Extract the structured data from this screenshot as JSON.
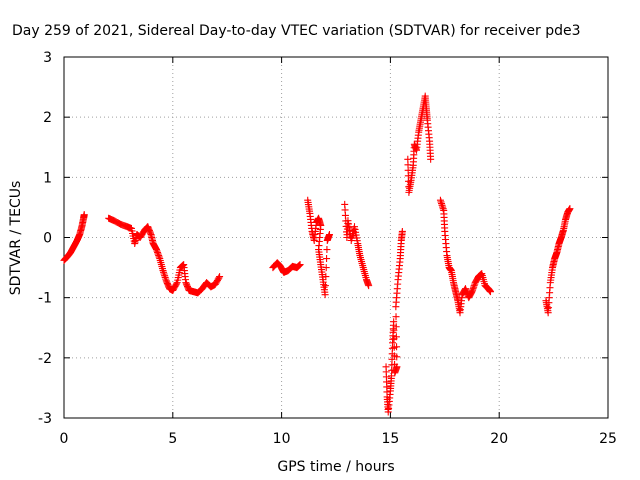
{
  "chart_data": {
    "type": "scatter",
    "title": "Day 259 of 2021, Sidereal Day-to-day VTEC variation (SDTVAR) for receiver pde3",
    "xlabel": "GPS time / hours",
    "ylabel": "SDTVAR / TECUs",
    "xlim": [
      0,
      25
    ],
    "ylim": [
      -3,
      3
    ],
    "xticks": [
      0,
      5,
      10,
      15,
      20,
      25
    ],
    "yticks": [
      -3,
      -2,
      -1,
      0,
      1,
      2,
      3
    ],
    "xtick_labels": [
      "0",
      "5",
      "10",
      "15",
      "20",
      "25"
    ],
    "ytick_labels": [
      "-3",
      "-2",
      "-1",
      "0",
      "1",
      "2",
      "3"
    ],
    "grid": true,
    "marker": "+",
    "color": "#ff0000",
    "series": [
      {
        "name": "pde3",
        "segments": [
          [
            [
              0.0,
              -0.38
            ],
            [
              0.15,
              -0.32
            ],
            [
              0.3,
              -0.25
            ],
            [
              0.45,
              -0.15
            ],
            [
              0.6,
              -0.05
            ],
            [
              0.72,
              0.05
            ],
            [
              0.82,
              0.18
            ],
            [
              0.9,
              0.32
            ],
            [
              0.93,
              0.38
            ]
          ],
          [
            [
              2.05,
              0.32
            ],
            [
              2.3,
              0.28
            ],
            [
              2.6,
              0.22
            ],
            [
              2.9,
              0.18
            ],
            [
              3.1,
              0.15
            ],
            [
              3.25,
              -0.1
            ],
            [
              3.35,
              0.05
            ],
            [
              3.5,
              0.0
            ],
            [
              3.7,
              0.12
            ],
            [
              3.85,
              0.18
            ],
            [
              4.0,
              0.05
            ],
            [
              4.1,
              -0.1
            ],
            [
              4.25,
              -0.2
            ],
            [
              4.4,
              -0.35
            ],
            [
              4.55,
              -0.55
            ],
            [
              4.7,
              -0.72
            ],
            [
              4.85,
              -0.85
            ],
            [
              5.0,
              -0.88
            ],
            [
              5.2,
              -0.75
            ],
            [
              5.35,
              -0.5
            ],
            [
              5.5,
              -0.45
            ],
            [
              5.6,
              -0.75
            ],
            [
              5.75,
              -0.88
            ],
            [
              5.95,
              -0.9
            ],
            [
              6.15,
              -0.92
            ],
            [
              6.35,
              -0.85
            ],
            [
              6.55,
              -0.75
            ],
            [
              6.75,
              -0.82
            ],
            [
              6.95,
              -0.78
            ],
            [
              7.15,
              -0.65
            ]
          ],
          [
            [
              9.6,
              -0.5
            ],
            [
              9.8,
              -0.42
            ],
            [
              9.95,
              -0.48
            ],
            [
              10.1,
              -0.58
            ],
            [
              10.3,
              -0.55
            ],
            [
              10.5,
              -0.48
            ],
            [
              10.7,
              -0.5
            ],
            [
              10.85,
              -0.45
            ]
          ],
          [
            [
              11.2,
              0.62
            ],
            [
              11.3,
              0.4
            ],
            [
              11.4,
              0.1
            ],
            [
              11.5,
              -0.05
            ],
            [
              11.6,
              0.25
            ],
            [
              11.7,
              0.32
            ],
            [
              11.8,
              0.2
            ],
            [
              11.7,
              -0.2
            ],
            [
              11.8,
              -0.45
            ],
            [
              11.9,
              -0.7
            ],
            [
              12.0,
              -0.95
            ],
            [
              12.1,
              -0.05
            ],
            [
              12.2,
              0.05
            ]
          ],
          [
            [
              12.9,
              0.55
            ],
            [
              13.0,
              0.0
            ],
            [
              13.05,
              0.28
            ],
            [
              13.2,
              -0.05
            ],
            [
              13.35,
              0.18
            ],
            [
              13.5,
              -0.1
            ],
            [
              13.6,
              -0.3
            ],
            [
              13.75,
              -0.5
            ],
            [
              13.9,
              -0.7
            ],
            [
              14.0,
              -0.8
            ]
          ],
          [
            [
              14.8,
              -2.15
            ],
            [
              14.85,
              -2.65
            ],
            [
              14.9,
              -2.9
            ],
            [
              15.0,
              -2.55
            ],
            [
              15.05,
              -2.3
            ],
            [
              15.1,
              -1.75
            ],
            [
              15.15,
              -1.4
            ],
            [
              15.2,
              -2.25
            ],
            [
              15.3,
              -2.15
            ],
            [
              15.25,
              -1.15
            ],
            [
              15.35,
              -0.7
            ],
            [
              15.45,
              -0.35
            ],
            [
              15.5,
              -0.05
            ],
            [
              15.55,
              0.1
            ]
          ],
          [
            [
              15.8,
              1.3
            ],
            [
              15.85,
              0.75
            ],
            [
              15.95,
              0.95
            ],
            [
              16.05,
              1.2
            ],
            [
              16.1,
              1.55
            ],
            [
              16.2,
              1.45
            ],
            [
              16.3,
              1.75
            ],
            [
              16.4,
              1.95
            ],
            [
              16.5,
              2.15
            ],
            [
              16.6,
              2.35
            ],
            [
              16.65,
              2.15
            ],
            [
              16.7,
              1.95
            ],
            [
              16.8,
              1.6
            ],
            [
              16.85,
              1.3
            ]
          ],
          [
            [
              17.3,
              0.62
            ],
            [
              17.45,
              0.45
            ],
            [
              17.5,
              0.1
            ],
            [
              17.6,
              -0.3
            ],
            [
              17.7,
              -0.5
            ],
            [
              17.8,
              -0.55
            ],
            [
              17.9,
              -0.75
            ],
            [
              18.0,
              -0.9
            ],
            [
              18.1,
              -1.05
            ],
            [
              18.2,
              -1.25
            ],
            [
              18.3,
              -0.95
            ],
            [
              18.45,
              -0.85
            ],
            [
              18.6,
              -1.0
            ],
            [
              18.75,
              -0.9
            ],
            [
              18.9,
              -0.75
            ],
            [
              19.05,
              -0.65
            ],
            [
              19.2,
              -0.6
            ],
            [
              19.35,
              -0.8
            ],
            [
              19.5,
              -0.85
            ],
            [
              19.6,
              -0.9
            ]
          ],
          [
            [
              22.15,
              -1.05
            ],
            [
              22.25,
              -1.25
            ],
            [
              22.35,
              -0.75
            ],
            [
              22.45,
              -0.5
            ],
            [
              22.55,
              -0.35
            ],
            [
              22.65,
              -0.25
            ],
            [
              22.75,
              -0.1
            ],
            [
              22.85,
              0.0
            ],
            [
              22.95,
              0.12
            ],
            [
              23.05,
              0.3
            ],
            [
              23.15,
              0.42
            ],
            [
              23.25,
              0.48
            ]
          ]
        ]
      }
    ]
  }
}
